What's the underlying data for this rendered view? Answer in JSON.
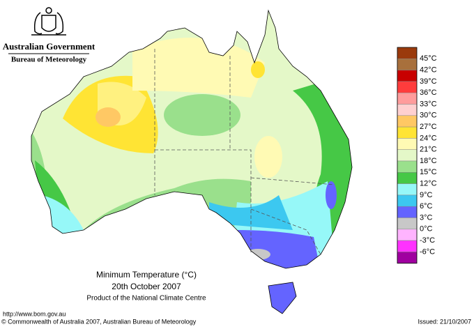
{
  "header": {
    "government": "Australian Government",
    "bureau": "Bureau of Meteorology"
  },
  "legend": {
    "labels": [
      "45°C",
      "42°C",
      "39°C",
      "36°C",
      "33°C",
      "30°C",
      "27°C",
      "24°C",
      "21°C",
      "18°C",
      "15°C",
      "12°C",
      "9°C",
      "6°C",
      "3°C",
      "0°C",
      "-3°C",
      "-6°C"
    ],
    "colors": [
      "#9a3a0c",
      "#a8703c",
      "#c80000",
      "#ff3c3c",
      "#ff9c9c",
      "#ffd0d0",
      "#ffc864",
      "#ffe434",
      "#fffab4",
      "#e4f8c8",
      "#9ae08c",
      "#46c846",
      "#96f8f8",
      "#3cc8f0",
      "#6464ff",
      "#c8c8c8",
      "#ffb4ff",
      "#ff32ff",
      "#a000a0"
    ]
  },
  "title": {
    "line1": "Minimum Temperature (°C)",
    "line2": "20th October 2007",
    "line3": "Product of the National Climate Centre"
  },
  "footer": {
    "url": "http://www.bom.gov.au",
    "copyright": "© Commonwealth of Australia 2007, Australian Bureau of Meteorology",
    "issued": "Issued: 21/10/2007"
  }
}
